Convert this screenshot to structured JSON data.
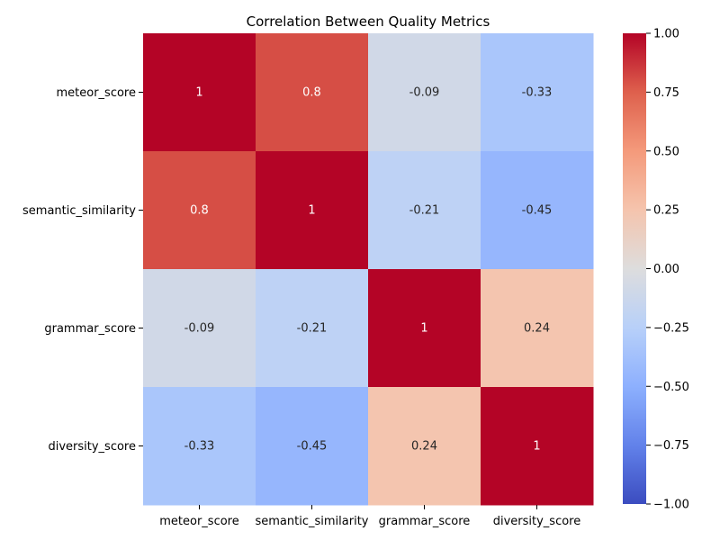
{
  "chart_data": {
    "type": "heatmap",
    "title": "Correlation Between Quality Metrics",
    "xlabel": "",
    "ylabel": "",
    "rows": [
      "meteor_score",
      "semantic_similarity",
      "grammar_score",
      "diversity_score"
    ],
    "columns": [
      "meteor_score",
      "semantic_similarity",
      "grammar_score",
      "diversity_score"
    ],
    "values": [
      [
        1,
        0.8,
        -0.09,
        -0.33
      ],
      [
        0.8,
        1,
        -0.21,
        -0.45
      ],
      [
        -0.09,
        -0.21,
        1,
        0.24
      ],
      [
        -0.33,
        -0.45,
        0.24,
        1
      ]
    ],
    "annotations": [
      [
        "1",
        "0.8",
        "-0.09",
        "-0.33"
      ],
      [
        "0.8",
        "1",
        "-0.21",
        "-0.45"
      ],
      [
        "-0.09",
        "-0.21",
        "1",
        "0.24"
      ],
      [
        "-0.33",
        "-0.45",
        "0.24",
        "1"
      ]
    ],
    "colormap": "coolwarm",
    "vmin": -1.0,
    "vmax": 1.0,
    "colorbar": {
      "ticks": [
        1.0,
        0.75,
        0.5,
        0.25,
        0.0,
        -0.25,
        -0.5,
        -0.75,
        -1.0
      ],
      "tick_labels": [
        "1.00",
        "0.75",
        "0.50",
        "0.25",
        "0.00",
        "−0.25",
        "−0.50",
        "−0.75",
        "−1.00"
      ]
    },
    "grid": false
  }
}
